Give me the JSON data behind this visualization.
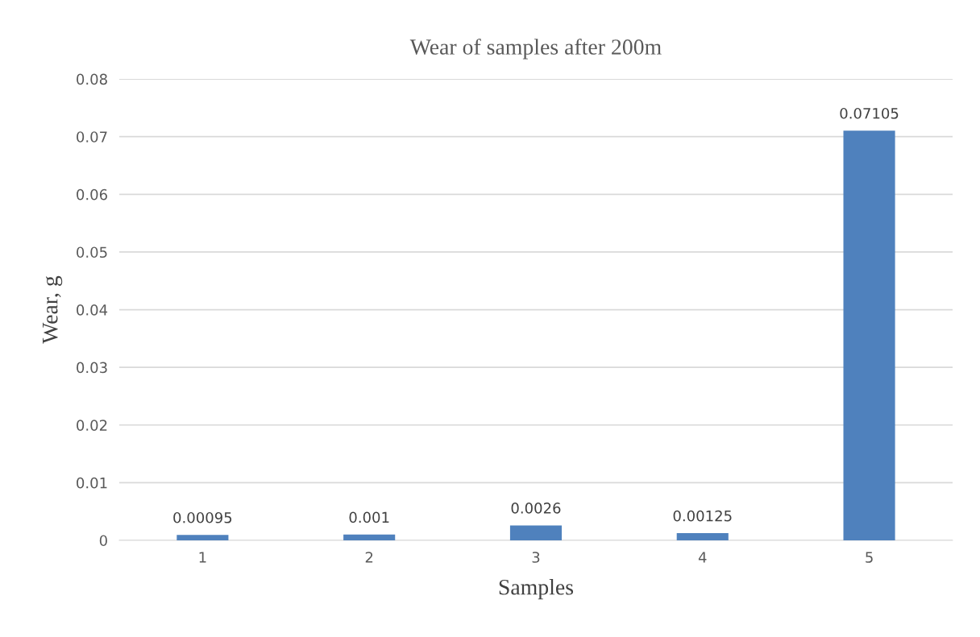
{
  "chart_data": {
    "type": "bar",
    "title": "Wear of samples after 200m",
    "xlabel": "Samples",
    "ylabel": "Wear, g",
    "categories": [
      "1",
      "2",
      "3",
      "4",
      "5"
    ],
    "values": [
      0.00095,
      0.001,
      0.0026,
      0.00125,
      0.07105
    ],
    "color": "#4f81bd",
    "ylim": [
      0,
      0.08
    ],
    "yticks": [
      0,
      0.01,
      0.02,
      0.03,
      0.04,
      0.05,
      0.06,
      0.07,
      0.08
    ],
    "grid": "y",
    "data_labels": true
  }
}
